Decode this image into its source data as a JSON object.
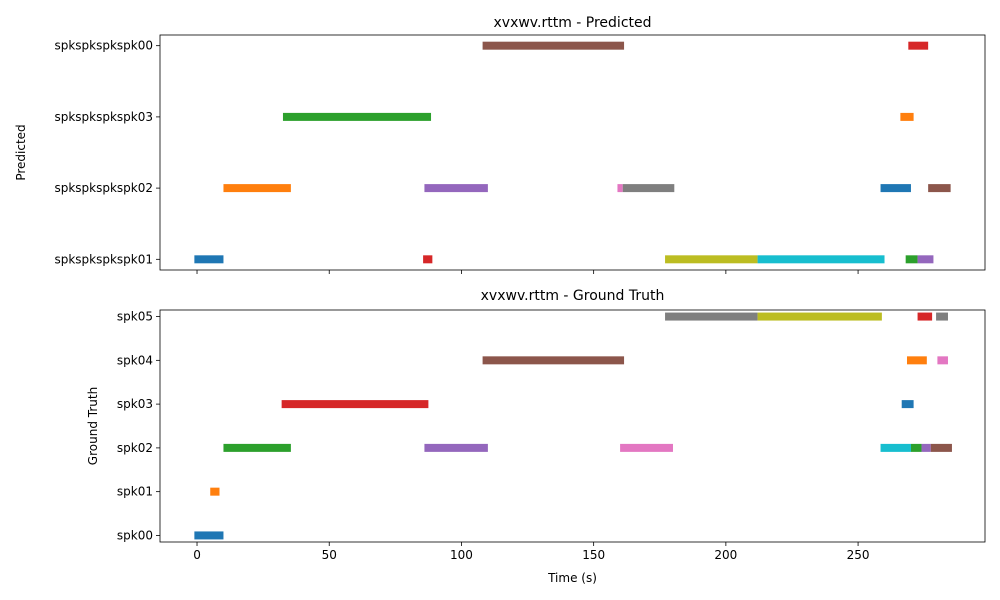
{
  "chart_data": [
    {
      "type": "bar",
      "subtype": "gantt",
      "title": "xvxwv.rttm - Predicted",
      "xlabel": "",
      "ylabel": "Predicted",
      "xlim": [
        -14,
        298
      ],
      "xticks": [
        0,
        50,
        100,
        150,
        200,
        250
      ],
      "show_xticklabels": false,
      "categories": [
        "spkspkspkspk01",
        "spkspkspkspk02",
        "spkspkspkspk03",
        "spkspkspkspk00"
      ],
      "segments": [
        {
          "speaker": "spkspkspkspk01",
          "start": -1,
          "end": 10,
          "color": "#1f77b4"
        },
        {
          "speaker": "spkspkspkspk02",
          "start": 10,
          "end": 35.5,
          "color": "#ff7f0e"
        },
        {
          "speaker": "spkspkspkspk03",
          "start": 32.5,
          "end": 88.5,
          "color": "#2ca02c"
        },
        {
          "speaker": "spkspkspkspk01",
          "start": 85.5,
          "end": 89,
          "color": "#d62728"
        },
        {
          "speaker": "spkspkspkspk02",
          "start": 86,
          "end": 110,
          "color": "#9467bd"
        },
        {
          "speaker": "spkspkspkspk00",
          "start": 108,
          "end": 161.5,
          "color": "#8c564b"
        },
        {
          "speaker": "spkspkspkspk02",
          "start": 159,
          "end": 161,
          "color": "#e377c2"
        },
        {
          "speaker": "spkspkspkspk02",
          "start": 161,
          "end": 180.5,
          "color": "#7f7f7f"
        },
        {
          "speaker": "spkspkspkspk01",
          "start": 177,
          "end": 212,
          "color": "#bcbd22"
        },
        {
          "speaker": "spkspkspkspk01",
          "start": 212,
          "end": 260,
          "color": "#17becf"
        },
        {
          "speaker": "spkspkspkspk02",
          "start": 258.5,
          "end": 270,
          "color": "#1f77b4"
        },
        {
          "speaker": "spkspkspkspk03",
          "start": 266,
          "end": 271,
          "color": "#ff7f0e"
        },
        {
          "speaker": "spkspkspkspk01",
          "start": 268,
          "end": 272.5,
          "color": "#2ca02c"
        },
        {
          "speaker": "spkspkspkspk00",
          "start": 269,
          "end": 276.5,
          "color": "#d62728"
        },
        {
          "speaker": "spkspkspkspk01",
          "start": 272.5,
          "end": 278.5,
          "color": "#9467bd"
        },
        {
          "speaker": "spkspkspkspk02",
          "start": 276.5,
          "end": 285,
          "color": "#8c564b"
        }
      ]
    },
    {
      "type": "bar",
      "subtype": "gantt",
      "title": "xvxwv.rttm - Ground Truth",
      "xlabel": "Time (s)",
      "ylabel": "Ground Truth",
      "xlim": [
        -14,
        298
      ],
      "xticks": [
        0,
        50,
        100,
        150,
        200,
        250
      ],
      "show_xticklabels": true,
      "categories": [
        "spk00",
        "spk01",
        "spk02",
        "spk03",
        "spk04",
        "spk05"
      ],
      "segments": [
        {
          "speaker": "spk00",
          "start": -1,
          "end": 10,
          "color": "#1f77b4"
        },
        {
          "speaker": "spk01",
          "start": 5,
          "end": 8.5,
          "color": "#ff7f0e"
        },
        {
          "speaker": "spk02",
          "start": 10,
          "end": 35.5,
          "color": "#2ca02c"
        },
        {
          "speaker": "spk03",
          "start": 32,
          "end": 87.5,
          "color": "#d62728"
        },
        {
          "speaker": "spk02",
          "start": 86,
          "end": 110,
          "color": "#9467bd"
        },
        {
          "speaker": "spk04",
          "start": 108,
          "end": 161.5,
          "color": "#8c564b"
        },
        {
          "speaker": "spk02",
          "start": 160,
          "end": 180,
          "color": "#e377c2"
        },
        {
          "speaker": "spk05",
          "start": 177,
          "end": 212,
          "color": "#7f7f7f"
        },
        {
          "speaker": "spk05",
          "start": 212,
          "end": 259,
          "color": "#bcbd22"
        },
        {
          "speaker": "spk02",
          "start": 258.5,
          "end": 270,
          "color": "#17becf"
        },
        {
          "speaker": "spk03",
          "start": 266.5,
          "end": 271,
          "color": "#1f77b4"
        },
        {
          "speaker": "spk04",
          "start": 268.5,
          "end": 276,
          "color": "#ff7f0e"
        },
        {
          "speaker": "spk02",
          "start": 270,
          "end": 274,
          "color": "#2ca02c"
        },
        {
          "speaker": "spk05",
          "start": 272.5,
          "end": 278,
          "color": "#d62728"
        },
        {
          "speaker": "spk02",
          "start": 274,
          "end": 277.5,
          "color": "#9467bd"
        },
        {
          "speaker": "spk02",
          "start": 277.5,
          "end": 285.5,
          "color": "#8c564b"
        },
        {
          "speaker": "spk04",
          "start": 280,
          "end": 284,
          "color": "#e377c2"
        },
        {
          "speaker": "spk05",
          "start": 279.5,
          "end": 284,
          "color": "#7f7f7f"
        }
      ]
    }
  ]
}
